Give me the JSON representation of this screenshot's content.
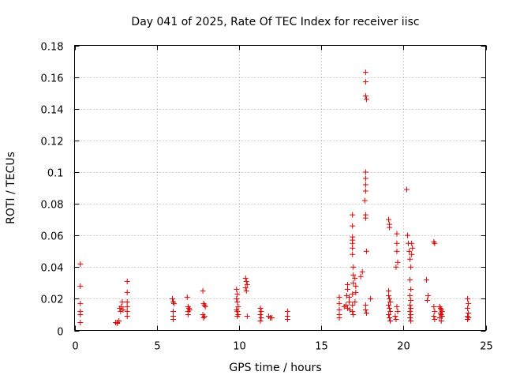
{
  "chart_data": {
    "type": "scatter",
    "title": "Day 041 of 2025, Rate Of TEC Index for receiver iisc",
    "xlabel": "GPS time / hours",
    "ylabel": "ROTI / TECUs",
    "xlim": [
      0,
      25
    ],
    "ylim": [
      0,
      0.18
    ],
    "xticks": [
      0,
      5,
      10,
      15,
      20,
      25
    ],
    "xtick_labels": [
      "0",
      "5",
      "10",
      "15",
      "20",
      "25"
    ],
    "yticks": [
      0,
      0.02,
      0.04,
      0.06,
      0.08,
      0.1,
      0.12,
      0.14,
      0.16,
      0.18
    ],
    "ytick_labels": [
      "0",
      "0.02",
      "0.04",
      "0.06",
      "0.08",
      "0.1",
      "0.12",
      "0.14",
      "0.16",
      "0.18"
    ],
    "grid": true,
    "marker": "+",
    "color": "#e00000",
    "series": [
      {
        "name": "ROTI",
        "points": [
          [
            0.35,
            0.042
          ],
          [
            0.35,
            0.028
          ],
          [
            0.35,
            0.017
          ],
          [
            0.35,
            0.012
          ],
          [
            0.35,
            0.01
          ],
          [
            0.35,
            0.005
          ],
          [
            2.5,
            0.005
          ],
          [
            2.6,
            0.005
          ],
          [
            2.7,
            0.006
          ],
          [
            2.6,
            0.0045
          ],
          [
            2.75,
            0.014
          ],
          [
            2.8,
            0.012
          ],
          [
            2.85,
            0.015
          ],
          [
            2.9,
            0.018
          ],
          [
            2.95,
            0.013
          ],
          [
            3.2,
            0.031
          ],
          [
            3.2,
            0.024
          ],
          [
            3.2,
            0.018
          ],
          [
            3.2,
            0.015
          ],
          [
            3.2,
            0.012
          ],
          [
            3.2,
            0.009
          ],
          [
            5.95,
            0.02
          ],
          [
            6.0,
            0.018
          ],
          [
            6.05,
            0.017
          ],
          [
            6.0,
            0.012
          ],
          [
            6.0,
            0.009
          ],
          [
            6.0,
            0.007
          ],
          [
            6.85,
            0.021
          ],
          [
            6.9,
            0.015
          ],
          [
            6.95,
            0.014
          ],
          [
            7.0,
            0.013
          ],
          [
            6.9,
            0.012
          ],
          [
            6.9,
            0.01
          ],
          [
            7.8,
            0.025
          ],
          [
            7.85,
            0.017
          ],
          [
            7.9,
            0.016
          ],
          [
            7.95,
            0.015
          ],
          [
            7.8,
            0.01
          ],
          [
            7.9,
            0.009
          ],
          [
            7.85,
            0.008
          ],
          [
            9.85,
            0.026
          ],
          [
            9.9,
            0.023
          ],
          [
            9.85,
            0.02
          ],
          [
            9.9,
            0.018
          ],
          [
            9.95,
            0.015
          ],
          [
            9.85,
            0.013
          ],
          [
            9.9,
            0.012
          ],
          [
            9.95,
            0.01
          ],
          [
            9.9,
            0.009
          ],
          [
            10.4,
            0.033
          ],
          [
            10.45,
            0.031
          ],
          [
            10.5,
            0.029
          ],
          [
            10.4,
            0.027
          ],
          [
            10.45,
            0.025
          ],
          [
            10.5,
            0.009
          ],
          [
            11.3,
            0.014
          ],
          [
            11.35,
            0.012
          ],
          [
            11.3,
            0.01
          ],
          [
            11.35,
            0.008
          ],
          [
            11.3,
            0.006
          ],
          [
            11.8,
            0.009
          ],
          [
            11.9,
            0.008
          ],
          [
            12.0,
            0.008
          ],
          [
            12.95,
            0.012
          ],
          [
            12.95,
            0.009
          ],
          [
            12.95,
            0.007
          ],
          [
            16.1,
            0.021
          ],
          [
            16.1,
            0.017
          ],
          [
            16.1,
            0.013
          ],
          [
            16.1,
            0.01
          ],
          [
            16.1,
            0.008
          ],
          [
            16.4,
            0.015
          ],
          [
            16.5,
            0.016
          ],
          [
            16.6,
            0.014
          ],
          [
            16.55,
            0.022
          ],
          [
            16.6,
            0.026
          ],
          [
            16.6,
            0.029
          ],
          [
            16.7,
            0.021
          ],
          [
            16.7,
            0.018
          ],
          [
            16.75,
            0.013
          ],
          [
            16.9,
            0.073
          ],
          [
            16.9,
            0.066
          ],
          [
            16.9,
            0.059
          ],
          [
            16.9,
            0.057
          ],
          [
            16.9,
            0.055
          ],
          [
            16.9,
            0.052
          ],
          [
            16.9,
            0.048
          ],
          [
            16.95,
            0.04
          ],
          [
            16.95,
            0.035
          ],
          [
            16.95,
            0.03
          ],
          [
            16.9,
            0.023
          ],
          [
            16.9,
            0.016
          ],
          [
            16.9,
            0.012
          ],
          [
            16.95,
            0.01
          ],
          [
            17.05,
            0.033
          ],
          [
            17.1,
            0.028
          ],
          [
            17.1,
            0.024
          ],
          [
            17.05,
            0.018
          ],
          [
            17.4,
            0.034
          ],
          [
            17.5,
            0.037
          ],
          [
            17.7,
            0.163
          ],
          [
            17.7,
            0.157
          ],
          [
            17.7,
            0.148
          ],
          [
            17.75,
            0.146
          ],
          [
            17.7,
            0.1
          ],
          [
            17.7,
            0.096
          ],
          [
            17.7,
            0.092
          ],
          [
            17.7,
            0.088
          ],
          [
            17.65,
            0.082
          ],
          [
            17.7,
            0.073
          ],
          [
            17.7,
            0.071
          ],
          [
            17.75,
            0.05
          ],
          [
            17.7,
            0.016
          ],
          [
            17.7,
            0.013
          ],
          [
            17.75,
            0.011
          ],
          [
            18.0,
            0.02
          ],
          [
            19.1,
            0.07
          ],
          [
            19.15,
            0.067
          ],
          [
            19.15,
            0.065
          ],
          [
            19.1,
            0.025
          ],
          [
            19.1,
            0.022
          ],
          [
            19.15,
            0.02
          ],
          [
            19.2,
            0.018
          ],
          [
            19.1,
            0.016
          ],
          [
            19.15,
            0.014
          ],
          [
            19.2,
            0.012
          ],
          [
            19.1,
            0.01
          ],
          [
            19.15,
            0.008
          ],
          [
            19.2,
            0.006
          ],
          [
            19.6,
            0.061
          ],
          [
            19.6,
            0.055
          ],
          [
            19.6,
            0.05
          ],
          [
            19.65,
            0.043
          ],
          [
            19.55,
            0.04
          ],
          [
            19.6,
            0.015
          ],
          [
            19.65,
            0.012
          ],
          [
            19.5,
            0.009
          ],
          [
            19.55,
            0.007
          ],
          [
            20.2,
            0.089
          ],
          [
            20.25,
            0.06
          ],
          [
            20.3,
            0.055
          ],
          [
            20.35,
            0.05
          ],
          [
            20.4,
            0.045
          ],
          [
            20.45,
            0.04
          ],
          [
            20.4,
            0.032
          ],
          [
            20.45,
            0.026
          ],
          [
            20.4,
            0.022
          ],
          [
            20.45,
            0.019
          ],
          [
            20.4,
            0.016
          ],
          [
            20.45,
            0.014
          ],
          [
            20.4,
            0.012
          ],
          [
            20.45,
            0.01
          ],
          [
            20.4,
            0.008
          ],
          [
            20.45,
            0.006
          ],
          [
            20.5,
            0.055
          ],
          [
            20.55,
            0.052
          ],
          [
            20.5,
            0.048
          ],
          [
            21.4,
            0.032
          ],
          [
            21.5,
            0.022
          ],
          [
            21.45,
            0.019
          ],
          [
            21.85,
            0.056
          ],
          [
            21.9,
            0.055
          ],
          [
            21.85,
            0.015
          ],
          [
            21.9,
            0.012
          ],
          [
            21.85,
            0.009
          ],
          [
            21.9,
            0.007
          ],
          [
            22.2,
            0.015
          ],
          [
            22.25,
            0.014
          ],
          [
            22.3,
            0.013
          ],
          [
            22.35,
            0.012
          ],
          [
            22.25,
            0.011
          ],
          [
            22.3,
            0.01
          ],
          [
            22.35,
            0.009
          ],
          [
            22.2,
            0.008
          ],
          [
            22.3,
            0.006
          ],
          [
            23.9,
            0.02
          ],
          [
            23.95,
            0.017
          ],
          [
            23.9,
            0.014
          ],
          [
            23.95,
            0.011
          ],
          [
            23.9,
            0.009
          ],
          [
            23.95,
            0.008
          ],
          [
            23.9,
            0.007
          ]
        ]
      }
    ]
  }
}
